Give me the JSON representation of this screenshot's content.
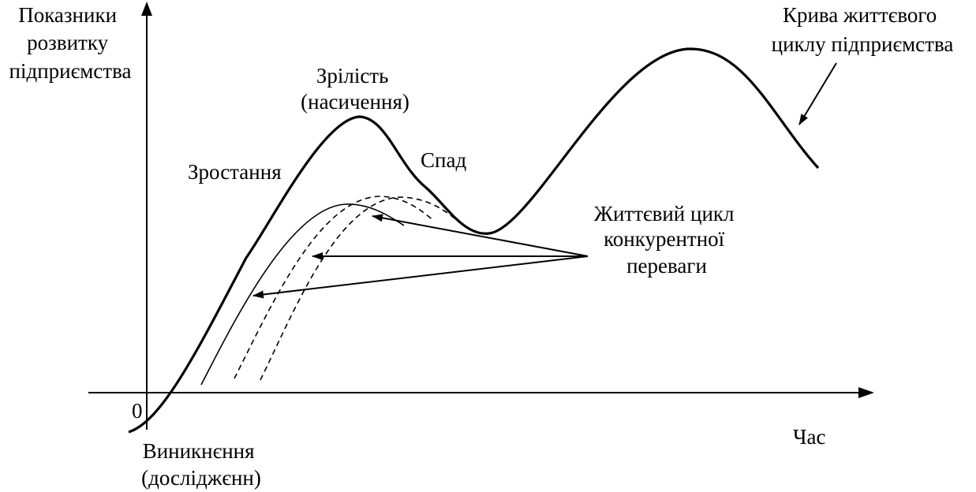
{
  "axes": {
    "y_label": [
      "Показники",
      "розвитку",
      "підприємства"
    ],
    "x_label": "Час",
    "origin": "0"
  },
  "labels": {
    "enterprise_curve": [
      "Крива життєвого",
      "циклу підприємства"
    ],
    "emergence": [
      "Виникнєння",
      "(досліджєнн)"
    ],
    "growth": "Зростання",
    "maturity": [
      "Зрілість",
      "(насичення)"
    ],
    "decline": "Спад",
    "advantage_cycle": [
      "Життєвий цикл",
      "конкурентної",
      "переваги"
    ]
  }
}
